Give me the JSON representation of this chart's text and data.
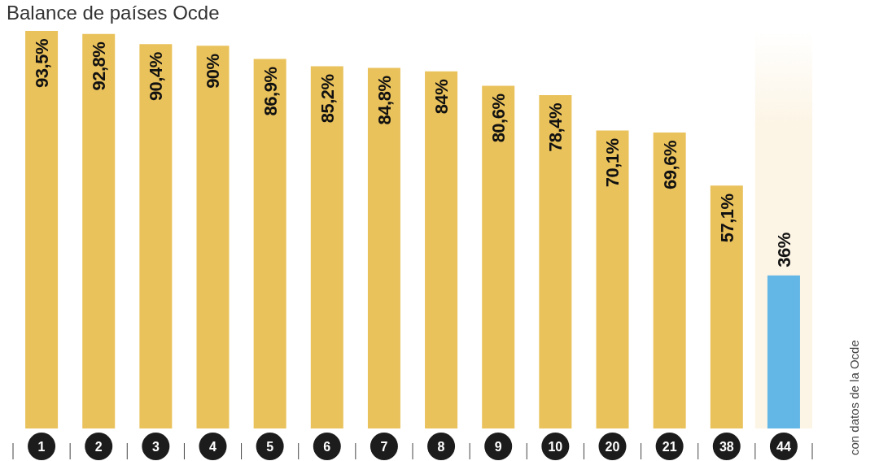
{
  "chart_data": {
    "type": "bar",
    "title": "Balance de países Ocde",
    "categories": [
      "1",
      "2",
      "3",
      "4",
      "5",
      "6",
      "7",
      "8",
      "9",
      "10",
      "20",
      "21",
      "38",
      "44"
    ],
    "values": [
      93.5,
      92.8,
      90.4,
      90,
      86.9,
      85.2,
      84.8,
      84,
      80.6,
      78.4,
      70.1,
      69.6,
      57.1,
      36
    ],
    "value_labels": [
      "93,5%",
      "92,8%",
      "90,4%",
      "90%",
      "86,9%",
      "85,2%",
      "84,8%",
      "84%",
      "80,6%",
      "78,4%",
      "70,1%",
      "69,6%",
      "57,1%",
      "36%"
    ],
    "colors": [
      "#eac25c",
      "#eac25c",
      "#eac25c",
      "#eac25c",
      "#eac25c",
      "#eac25c",
      "#eac25c",
      "#eac25c",
      "#eac25c",
      "#eac25c",
      "#eac25c",
      "#eac25c",
      "#eac25c",
      "#63b7e6"
    ],
    "bands": [
      {
        "axis": "x",
        "from": "44",
        "to": "44",
        "color": "#fcf4e4"
      }
    ],
    "annotations": [
      "con datos de la Ocde"
    ]
  }
}
